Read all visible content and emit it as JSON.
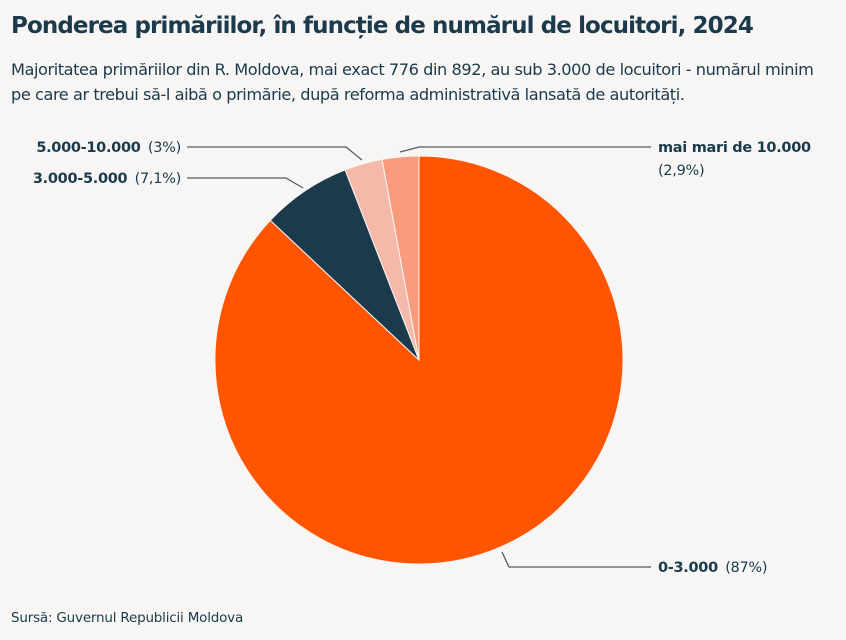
{
  "title": "Ponderea primăriilor, în funcție de numărul de locuitori, 2024",
  "subtitle": "Majoritatea primăriilor din R. Moldova, mai exact 776 din 892, au sub 3.000 de locuitori - numărul minim pe care ar trebui să-l aibă o primărie, după reforma administrativă lansată de autorități.",
  "source": "Sursă: Guvernul Republicii Moldova",
  "chart_data": {
    "type": "pie",
    "title": "Ponderea primăriilor, în funcție de numărul de locuitori, 2024",
    "start": "top, clockwise",
    "slices": [
      {
        "category": "0-3.000",
        "value": 87,
        "label_value": "(87%)",
        "color": "#ff5500"
      },
      {
        "category": "3.000-5.000",
        "value": 7.1,
        "label_value": "(7,1%)",
        "color": "#1b3a4b"
      },
      {
        "category": "5.000-10.000",
        "value": 3,
        "label_value": "(3%)",
        "color": "#f5b9aa"
      },
      {
        "category": "mai mari de 10.000",
        "value": 2.9,
        "label_value": "(2,9%)",
        "color": "#f99c7e"
      }
    ]
  }
}
